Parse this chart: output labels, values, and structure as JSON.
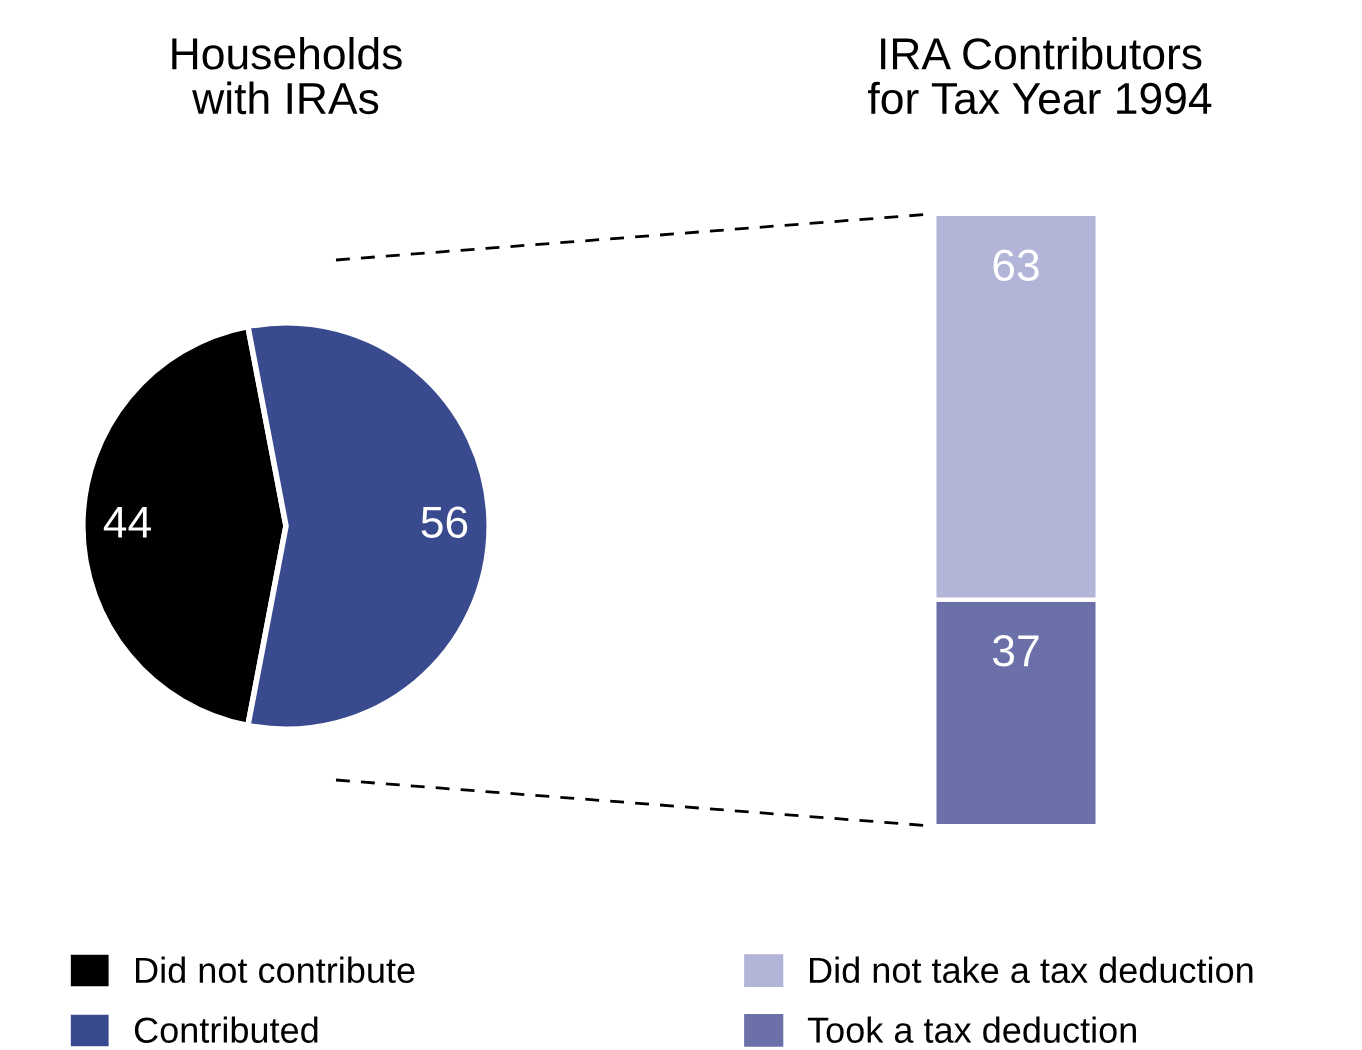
{
  "chart_data": [
    {
      "type": "pie",
      "title": "Households\nwith IRAs",
      "categories": [
        "Did not contribute",
        "Contributed"
      ],
      "values": [
        44,
        56
      ],
      "colors": [
        "#000000",
        "#3a4a8e"
      ],
      "data_labels": true,
      "legend": "bottom"
    },
    {
      "type": "bar",
      "title": "IRA Contributors\nfor Tax Year 1994",
      "categories": [
        null
      ],
      "stacked": true,
      "data_labels": true,
      "legend": "bottom",
      "tick_labels": false,
      "series": [
        {
          "name": "Took a tax deduction",
          "color": "#6b70a8",
          "values": [
            37
          ]
        },
        {
          "name": "Did not take a tax deduction",
          "color": "#b2b5d8",
          "values": [
            63
          ]
        }
      ]
    }
  ]
}
